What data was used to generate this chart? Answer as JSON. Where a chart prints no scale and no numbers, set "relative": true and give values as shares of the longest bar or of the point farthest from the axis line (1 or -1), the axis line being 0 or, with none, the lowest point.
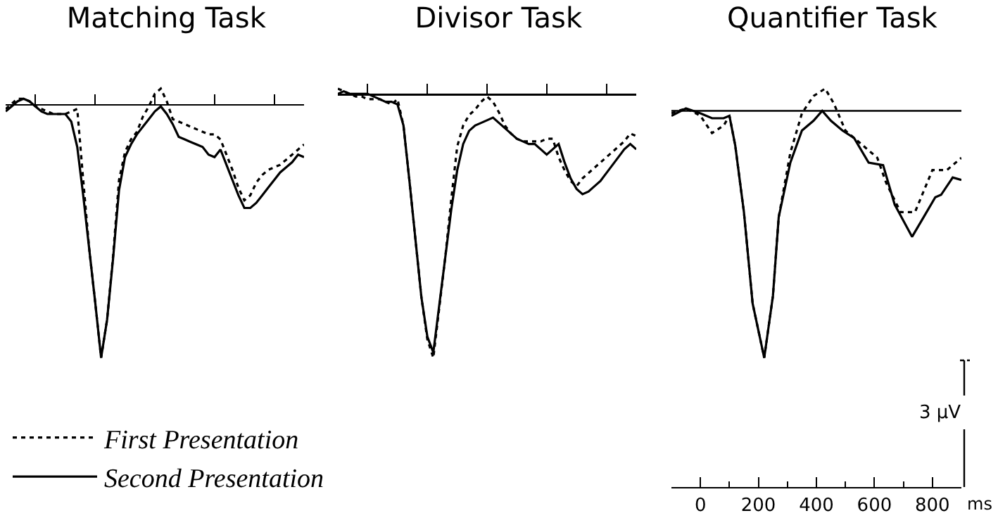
{
  "chart_data": [
    {
      "type": "line",
      "title": "Matching Task",
      "relative": true,
      "categories": [
        null,
        null,
        null,
        null,
        null,
        null,
        null,
        null,
        null,
        null,
        null,
        null,
        null,
        null,
        null,
        null,
        null,
        null,
        null,
        null,
        null,
        null,
        null,
        null,
        null,
        null,
        null,
        null,
        null,
        null,
        null,
        null,
        null,
        null,
        null,
        null,
        null,
        null,
        null,
        null,
        null,
        null,
        null,
        null,
        null,
        null,
        null,
        null,
        null,
        null,
        null
      ],
      "legend": "bottom left",
      "series": [
        {
          "name": "First Presentation",
          "color": "#000000",
          "line_style": "dotted",
          "values": [
            -0.02,
            0.0,
            0.02,
            0.02,
            0.01,
            -0.01,
            -0.02,
            -0.03,
            -0.04,
            -0.04,
            -0.04,
            -0.03,
            -0.02,
            -0.3,
            -0.57,
            -0.78,
            -1.0,
            -0.85,
            -0.6,
            -0.3,
            -0.19,
            -0.14,
            -0.11,
            -0.05,
            -0.01,
            0.04,
            0.06,
            0.01,
            -0.06,
            -0.07,
            -0.08,
            -0.09,
            -0.1,
            -0.11,
            -0.12,
            -0.12,
            -0.14,
            -0.2,
            -0.26,
            -0.33,
            -0.38,
            -0.36,
            -0.31,
            -0.28,
            -0.26,
            -0.25,
            -0.24,
            -0.22,
            -0.2,
            -0.18,
            -0.16
          ]
        },
        {
          "name": "Second Presentation",
          "color": "#000000",
          "line_style": "solid",
          "values": [
            -0.03,
            -0.01,
            0.01,
            0.02,
            0.01,
            -0.01,
            -0.03,
            -0.04,
            -0.04,
            -0.04,
            -0.04,
            -0.07,
            -0.17,
            -0.36,
            -0.57,
            -0.78,
            -1.0,
            -0.85,
            -0.61,
            -0.34,
            -0.21,
            -0.16,
            -0.12,
            -0.09,
            -0.06,
            -0.03,
            -0.01,
            -0.04,
            -0.08,
            -0.13,
            -0.14,
            -0.15,
            -0.16,
            -0.17,
            -0.2,
            -0.21,
            -0.18,
            -0.24,
            -0.3,
            -0.36,
            -0.41,
            -0.41,
            -0.39,
            -0.36,
            -0.33,
            -0.3,
            -0.27,
            -0.25,
            -0.23,
            -0.2,
            -0.21
          ]
        }
      ]
    },
    {
      "type": "line",
      "title": "Divisor Task",
      "relative": true,
      "categories": [
        null,
        null,
        null,
        null,
        null,
        null,
        null,
        null,
        null,
        null,
        null,
        null,
        null,
        null,
        null,
        null,
        null,
        null,
        null,
        null,
        null,
        null,
        null,
        null,
        null,
        null,
        null,
        null,
        null,
        null,
        null,
        null,
        null,
        null,
        null,
        null,
        null,
        null,
        null,
        null,
        null,
        null,
        null,
        null,
        null,
        null,
        null,
        null,
        null,
        null,
        null
      ],
      "series": [
        {
          "color": "#000000",
          "line_style": "dotted",
          "values": [
            0.02,
            0.01,
            0.0,
            -0.01,
            -0.01,
            -0.02,
            -0.02,
            -0.02,
            -0.03,
            -0.04,
            -0.02,
            -0.12,
            -0.33,
            -0.55,
            -0.77,
            -0.93,
            -1.0,
            -0.81,
            -0.62,
            -0.4,
            -0.2,
            -0.12,
            -0.08,
            -0.06,
            -0.03,
            -0.01,
            -0.03,
            -0.07,
            -0.12,
            -0.15,
            -0.17,
            -0.18,
            -0.18,
            -0.18,
            -0.18,
            -0.17,
            -0.17,
            -0.24,
            -0.29,
            -0.33,
            -0.35,
            -0.32,
            -0.3,
            -0.28,
            -0.26,
            -0.24,
            -0.22,
            -0.2,
            -0.18,
            -0.15,
            -0.16
          ]
        },
        {
          "color": "#000000",
          "line_style": "solid",
          "values": [
            0.0,
            0.01,
            0.0,
            0.0,
            0.0,
            0.0,
            -0.01,
            -0.02,
            -0.03,
            -0.03,
            -0.04,
            -0.12,
            -0.33,
            -0.55,
            -0.77,
            -0.92,
            -0.98,
            -0.8,
            -0.62,
            -0.44,
            -0.29,
            -0.19,
            -0.14,
            -0.12,
            -0.11,
            -0.1,
            -0.09,
            -0.11,
            -0.13,
            -0.15,
            -0.17,
            -0.18,
            -0.19,
            -0.19,
            -0.21,
            -0.23,
            -0.21,
            -0.19,
            -0.26,
            -0.32,
            -0.36,
            -0.38,
            -0.37,
            -0.35,
            -0.33,
            -0.3,
            -0.27,
            -0.24,
            -0.21,
            -0.19,
            -0.21
          ]
        }
      ]
    },
    {
      "type": "line",
      "title": "Quantifier Task",
      "relative": true,
      "xlim": [
        -100,
        900
      ],
      "xticks": [
        0,
        200,
        400,
        600,
        800
      ],
      "tick_labels": "x",
      "xlabel": "ms",
      "annotations": [
        "3 µV"
      ],
      "ref_lines": [
        {
          "axis": "y",
          "value": 0
        }
      ],
      "series": [
        {
          "color": "#000000",
          "line_style": "dotted",
          "x": [
            -100,
            -50,
            0,
            40,
            80,
            100,
            120,
            150,
            180,
            220,
            250,
            270,
            310,
            350,
            390,
            430,
            460,
            500,
            550,
            610,
            640,
            690,
            740,
            800,
            850,
            900
          ],
          "values": [
            -0.01,
            0.01,
            -0.02,
            -0.09,
            -0.06,
            -0.02,
            -0.14,
            -0.41,
            -0.78,
            -1.0,
            -0.75,
            -0.43,
            -0.17,
            -0.01,
            0.06,
            0.09,
            0.03,
            -0.08,
            -0.13,
            -0.19,
            -0.29,
            -0.41,
            -0.41,
            -0.24,
            -0.24,
            -0.19
          ]
        },
        {
          "color": "#000000",
          "line_style": "solid",
          "x": [
            -100,
            -50,
            0,
            40,
            80,
            100,
            120,
            150,
            180,
            220,
            250,
            270,
            310,
            350,
            390,
            420,
            450,
            490,
            530,
            580,
            630,
            670,
            730,
            770,
            810,
            830,
            870,
            900
          ],
          "values": [
            -0.02,
            0.01,
            -0.01,
            -0.03,
            -0.03,
            -0.02,
            -0.14,
            -0.41,
            -0.78,
            -1.0,
            -0.75,
            -0.43,
            -0.21,
            -0.08,
            -0.04,
            0.0,
            -0.04,
            -0.08,
            -0.11,
            -0.21,
            -0.22,
            -0.38,
            -0.51,
            -0.43,
            -0.35,
            -0.34,
            -0.27,
            -0.28
          ]
        }
      ]
    }
  ]
}
